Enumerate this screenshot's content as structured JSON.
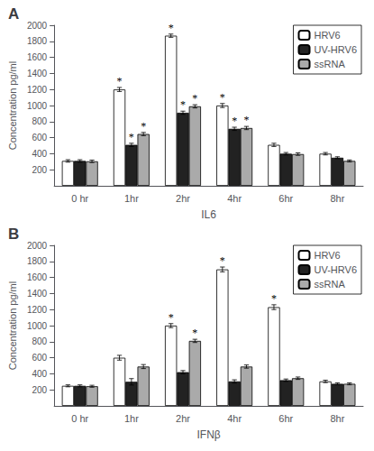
{
  "chart_data": [
    {
      "type": "bar",
      "title": "A",
      "xlabel": "IL6",
      "ylabel": "Concentration pg/ml",
      "categories": [
        "0 hr",
        "1hr",
        "2hr",
        "4hr",
        "6hr",
        "8hr"
      ],
      "series": [
        {
          "name": "HRV6",
          "color": "white",
          "values": [
            310,
            1200,
            1870,
            1000,
            510,
            400
          ],
          "errors": [
            15,
            25,
            20,
            25,
            20,
            15
          ],
          "annotations": [
            null,
            "*",
            "*",
            "*",
            null,
            null
          ]
        },
        {
          "name": "UV-HRV6",
          "color": "#222222",
          "values": [
            310,
            510,
            910,
            710,
            400,
            350
          ],
          "errors": [
            15,
            20,
            20,
            20,
            15,
            12
          ],
          "annotations": [
            null,
            "*",
            "*",
            "*",
            null,
            null
          ]
        },
        {
          "name": "ssRNA",
          "color": "#aaaaaa",
          "values": [
            305,
            645,
            990,
            720,
            395,
            310
          ],
          "errors": [
            15,
            20,
            20,
            20,
            15,
            12
          ],
          "annotations": [
            null,
            "*",
            "*",
            "*",
            null,
            null
          ]
        }
      ],
      "ylim": [
        0,
        2000
      ],
      "yticks": [
        200,
        400,
        600,
        800,
        1000,
        1200,
        1400,
        1600,
        1800,
        2000
      ],
      "grid": false,
      "legend": "upper right"
    },
    {
      "type": "bar",
      "title": "B",
      "xlabel": "IFNβ",
      "ylabel": "Concentration pg/ml",
      "categories": [
        "0 hr",
        "1hr",
        "2hr",
        "4hr",
        "6hr",
        "8hr"
      ],
      "series": [
        {
          "name": "HRV6",
          "color": "white",
          "values": [
            250,
            600,
            1000,
            1700,
            1230,
            305
          ],
          "errors": [
            12,
            30,
            25,
            30,
            30,
            15
          ],
          "annotations": [
            null,
            null,
            "*",
            "*",
            "*",
            null
          ]
        },
        {
          "name": "UV-HRV6",
          "color": "#222222",
          "values": [
            250,
            300,
            420,
            305,
            320,
            275
          ],
          "errors": [
            12,
            40,
            20,
            20,
            15,
            12
          ],
          "annotations": [
            null,
            null,
            null,
            null,
            null,
            null
          ]
        },
        {
          "name": "ssRNA",
          "color": "#aaaaaa",
          "values": [
            245,
            490,
            810,
            490,
            345,
            275
          ],
          "errors": [
            12,
            25,
            20,
            20,
            15,
            12
          ],
          "annotations": [
            null,
            null,
            "*",
            null,
            null,
            null
          ]
        }
      ],
      "ylim": [
        0,
        2000
      ],
      "yticks": [
        200,
        400,
        600,
        800,
        1000,
        1200,
        1400,
        1600,
        1800,
        2000
      ],
      "grid": false,
      "legend": "upper right"
    }
  ]
}
